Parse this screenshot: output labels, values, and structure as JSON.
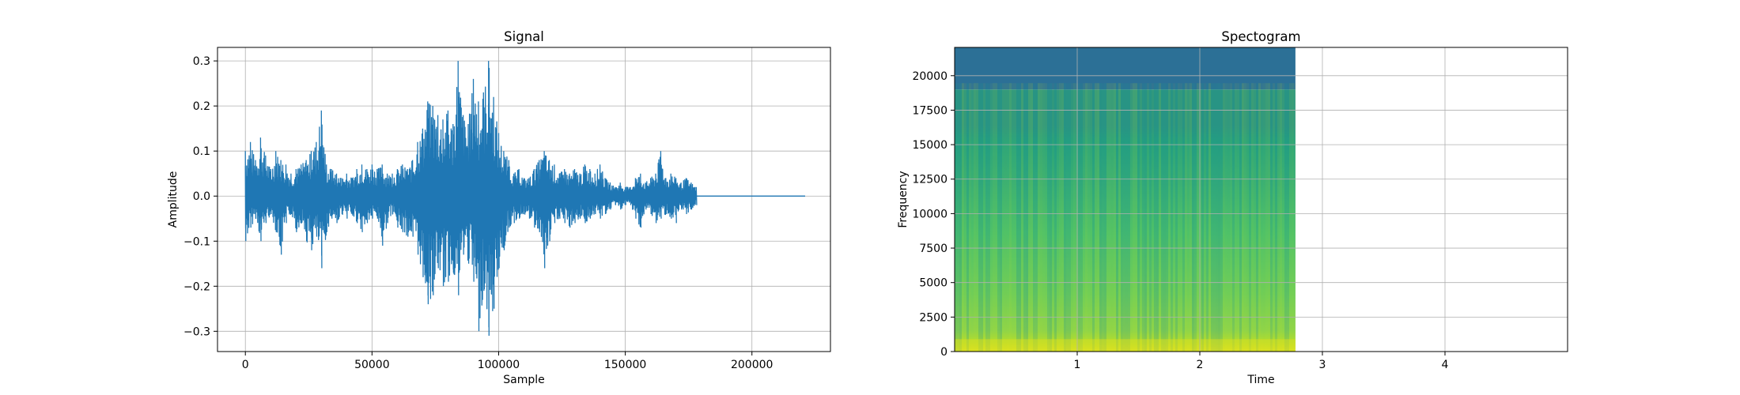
{
  "chart_data": [
    {
      "type": "line",
      "title": "Signal",
      "xlabel": "Sample",
      "ylabel": "Amplitude",
      "xlim": [
        -11000,
        231000
      ],
      "ylim": [
        -0.345,
        0.33
      ],
      "xticks": [
        0,
        50000,
        100000,
        150000,
        200000
      ],
      "xtick_labels": [
        "0",
        "50000",
        "100000",
        "150000",
        "200000"
      ],
      "yticks": [
        -0.3,
        -0.2,
        -0.1,
        0.0,
        0.1,
        0.2,
        0.3
      ],
      "ytick_labels": [
        "−0.3",
        "−0.2",
        "−0.1",
        "0.0",
        "0.1",
        "0.2",
        "0.3"
      ],
      "grid": true,
      "color": "#1f77b4",
      "series": [
        {
          "envelope": [
            [
              0,
              -0.1,
              0.1
            ],
            [
              2000,
              -0.07,
              0.12
            ],
            [
              4000,
              -0.05,
              0.08
            ],
            [
              6000,
              -0.1,
              0.13
            ],
            [
              8000,
              -0.06,
              0.09
            ],
            [
              10000,
              -0.04,
              0.06
            ],
            [
              12000,
              -0.08,
              0.1
            ],
            [
              14000,
              -0.13,
              0.08
            ],
            [
              16000,
              -0.06,
              0.07
            ],
            [
              18000,
              -0.04,
              0.05
            ],
            [
              20000,
              -0.08,
              0.06
            ],
            [
              22000,
              -0.06,
              0.07
            ],
            [
              24000,
              -0.1,
              0.08
            ],
            [
              26000,
              -0.12,
              0.1
            ],
            [
              28000,
              -0.09,
              0.12
            ],
            [
              30000,
              -0.16,
              0.19
            ],
            [
              32000,
              -0.08,
              0.07
            ],
            [
              34000,
              -0.05,
              0.06
            ],
            [
              36000,
              -0.06,
              0.05
            ],
            [
              38000,
              -0.04,
              0.04
            ],
            [
              40000,
              -0.05,
              0.05
            ],
            [
              42000,
              -0.04,
              0.04
            ],
            [
              44000,
              -0.06,
              0.06
            ],
            [
              46000,
              -0.08,
              0.07
            ],
            [
              48000,
              -0.06,
              0.06
            ],
            [
              50000,
              -0.05,
              0.07
            ],
            [
              52000,
              -0.05,
              0.06
            ],
            [
              54000,
              -0.11,
              0.07
            ],
            [
              56000,
              -0.06,
              0.05
            ],
            [
              58000,
              -0.04,
              0.05
            ],
            [
              60000,
              -0.07,
              0.06
            ],
            [
              62000,
              -0.08,
              0.07
            ],
            [
              64000,
              -0.09,
              0.06
            ],
            [
              66000,
              -0.09,
              0.08
            ],
            [
              68000,
              -0.13,
              0.12
            ],
            [
              70000,
              -0.18,
              0.15
            ],
            [
              72000,
              -0.24,
              0.21
            ],
            [
              74000,
              -0.22,
              0.2
            ],
            [
              76000,
              -0.16,
              0.18
            ],
            [
              78000,
              -0.2,
              0.17
            ],
            [
              80000,
              -0.19,
              0.19
            ],
            [
              82000,
              -0.17,
              0.16
            ],
            [
              84000,
              -0.22,
              0.3
            ],
            [
              86000,
              -0.13,
              0.18
            ],
            [
              88000,
              -0.15,
              0.16
            ],
            [
              90000,
              -0.19,
              0.26
            ],
            [
              92000,
              -0.3,
              0.21
            ],
            [
              94000,
              -0.21,
              0.23
            ],
            [
              96000,
              -0.31,
              0.3
            ],
            [
              98000,
              -0.25,
              0.22
            ],
            [
              100000,
              -0.16,
              0.14
            ],
            [
              102000,
              -0.12,
              0.1
            ],
            [
              104000,
              -0.07,
              0.08
            ],
            [
              106000,
              -0.06,
              0.05
            ],
            [
              108000,
              -0.05,
              0.06
            ],
            [
              110000,
              -0.04,
              0.04
            ],
            [
              112000,
              -0.05,
              0.04
            ],
            [
              114000,
              -0.07,
              0.06
            ],
            [
              116000,
              -0.08,
              0.08
            ],
            [
              118000,
              -0.16,
              0.1
            ],
            [
              120000,
              -0.1,
              0.08
            ],
            [
              122000,
              -0.06,
              0.07
            ],
            [
              124000,
              -0.05,
              0.05
            ],
            [
              126000,
              -0.06,
              0.06
            ],
            [
              128000,
              -0.07,
              0.05
            ],
            [
              130000,
              -0.06,
              0.06
            ],
            [
              132000,
              -0.05,
              0.05
            ],
            [
              134000,
              -0.06,
              0.07
            ],
            [
              136000,
              -0.05,
              0.06
            ],
            [
              138000,
              -0.04,
              0.05
            ],
            [
              140000,
              -0.05,
              0.07
            ],
            [
              142000,
              -0.04,
              0.04
            ],
            [
              144000,
              -0.03,
              0.03
            ],
            [
              146000,
              -0.02,
              0.02
            ],
            [
              148000,
              -0.03,
              0.03
            ],
            [
              150000,
              -0.02,
              0.02
            ],
            [
              152000,
              -0.02,
              0.02
            ],
            [
              154000,
              -0.05,
              0.04
            ],
            [
              156000,
              -0.07,
              0.05
            ],
            [
              158000,
              -0.03,
              0.03
            ],
            [
              160000,
              -0.04,
              0.04
            ],
            [
              162000,
              -0.06,
              0.05
            ],
            [
              164000,
              -0.05,
              0.1
            ],
            [
              166000,
              -0.04,
              0.04
            ],
            [
              168000,
              -0.05,
              0.05
            ],
            [
              170000,
              -0.06,
              0.04
            ],
            [
              172000,
              -0.03,
              0.03
            ],
            [
              174000,
              -0.04,
              0.04
            ],
            [
              176000,
              -0.03,
              0.03
            ],
            [
              178000,
              -0.02,
              0.02
            ]
          ],
          "flat_from": 178000,
          "flat_to": 221000,
          "flat_value": 0.0
        }
      ]
    },
    {
      "type": "heatmap",
      "title": "Spectogram",
      "xlabel": "Time",
      "ylabel": "Frequency",
      "xlim": [
        0.0,
        5.0
      ],
      "ylim": [
        0,
        22050
      ],
      "data_time_range": [
        0.0,
        2.78
      ],
      "xticks": [
        1,
        2,
        3,
        4
      ],
      "xtick_labels": [
        "1",
        "2",
        "3",
        "4"
      ],
      "yticks": [
        0,
        2500,
        5000,
        7500,
        10000,
        12500,
        15000,
        17500,
        20000
      ],
      "ytick_labels": [
        "0",
        "2500",
        "5000",
        "7500",
        "10000",
        "12500",
        "15000",
        "17500",
        "20000"
      ],
      "grid": true,
      "colormap": "viridis",
      "upper_band_color": "#2c7096",
      "band_cutoff_hz": 19000
    }
  ]
}
